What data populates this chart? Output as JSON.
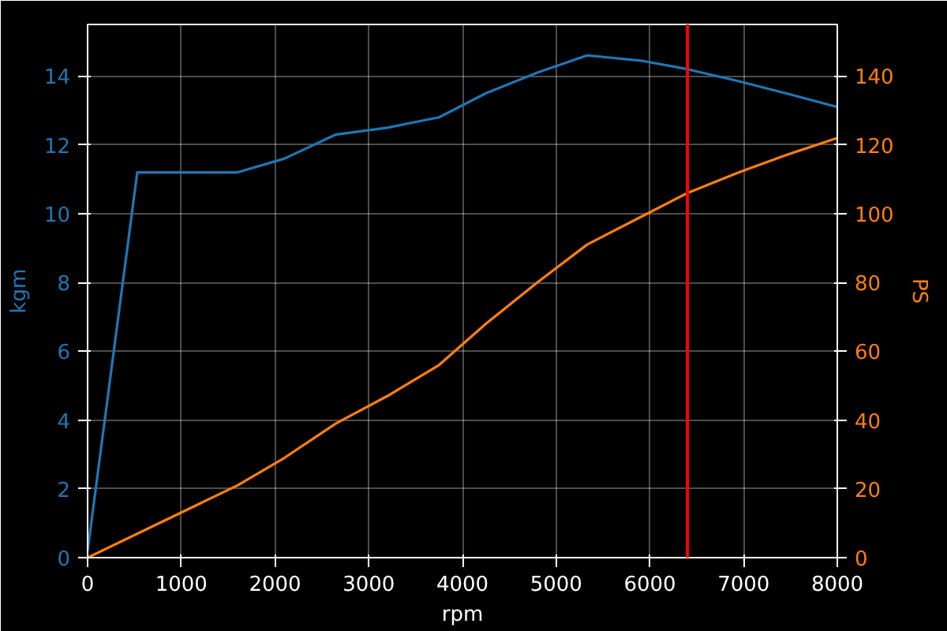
{
  "chart_data": {
    "type": "line",
    "xlabel": "rpm",
    "ylabel": "kgm",
    "y2label": "PS",
    "xlim": [
      0,
      8000
    ],
    "xticks": [
      0,
      1000,
      2000,
      3000,
      4000,
      5000,
      6000,
      7000,
      8000
    ],
    "ylim": [
      0,
      15.5
    ],
    "yticks": [
      0,
      2,
      4,
      6,
      8,
      10,
      12,
      14
    ],
    "y2lim": [
      0,
      155
    ],
    "y2ticks": [
      0,
      20,
      40,
      60,
      80,
      100,
      120,
      140
    ],
    "grid": true,
    "series": [
      {
        "color": "#1f77b4",
        "x": [
          0,
          530,
          1600,
          2100,
          2650,
          3200,
          3750,
          4250,
          4800,
          5330,
          5900,
          6400,
          6950,
          7450,
          8000
        ],
        "values": [
          0.2,
          11.2,
          11.2,
          11.6,
          12.3,
          12.5,
          12.8,
          13.5,
          14.1,
          14.6,
          14.45,
          14.2,
          13.85,
          13.5,
          13.1
        ]
      },
      {
        "color": "#ff7f0e",
        "axis": "y2",
        "x": [
          0,
          1600,
          2100,
          2650,
          3200,
          3750,
          4250,
          4800,
          5330,
          5900,
          6400,
          6950,
          7450,
          8000
        ],
        "values": [
          0,
          21,
          29,
          39,
          47,
          56,
          68,
          80,
          91,
          99,
          106,
          112,
          117,
          122
        ]
      }
    ],
    "ref_lines": [
      {
        "axis": "x",
        "value": 6400,
        "color": "#ff0000"
      }
    ]
  }
}
